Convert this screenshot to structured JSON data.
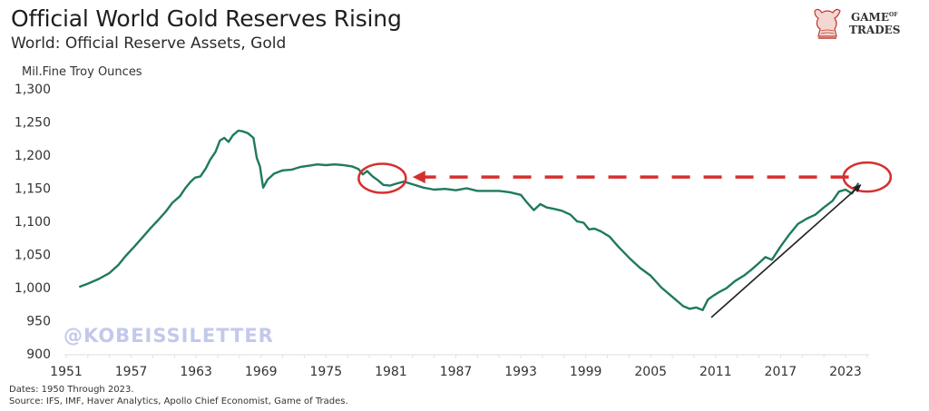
{
  "header": {
    "title": "Official World Gold Reserves Rising",
    "subtitle": "World: Official Reserve Assets, Gold",
    "unit_label": "Mil.Fine Troy Ounces"
  },
  "logo": {
    "line1": "GAME",
    "line1_small": "OF",
    "line2": "TRADES",
    "brand_color": "#c0392b"
  },
  "watermark": "@KOBEISSILETTER",
  "footnotes": {
    "dates": "Dates: 1950 Through 2023.",
    "source": "Source: IFS, IMF, Haver Analytics, Apollo Chief Economist, Game of Trades."
  },
  "colors": {
    "line": "#1f7a5c",
    "annotation": "#d62f2f",
    "arrow": "#222222",
    "axis": "#e3e3e3"
  },
  "chart_data": {
    "type": "line",
    "title": "Official World Gold Reserves Rising",
    "subtitle": "World: Official Reserve Assets, Gold",
    "xlabel": "",
    "ylabel": "Mil.Fine Troy Ounces",
    "xlim": [
      1950,
      2026
    ],
    "ylim": [
      900,
      1300
    ],
    "grid": false,
    "x_ticks": [
      1951,
      1957,
      1963,
      1969,
      1975,
      1981,
      1987,
      1993,
      1999,
      2005,
      2011,
      2017,
      2023
    ],
    "x_tick_labels": [
      "1951",
      "1957",
      "1963",
      "1969",
      "1975",
      "1981",
      "1987",
      "1993",
      "1999",
      "2005",
      "2011",
      "2017",
      "2023"
    ],
    "y_ticks": [
      900,
      950,
      1000,
      1050,
      1100,
      1150,
      1200,
      1250,
      1300
    ],
    "y_tick_labels": [
      "900",
      "950",
      "1,000",
      "1,050",
      "1,100",
      "1,150",
      "1,200",
      "1,250",
      "1,300"
    ],
    "series": [
      {
        "name": "World: Official Reserve Assets, Gold",
        "x": [
          1952.2,
          1953.0,
          1954.0,
          1955.0,
          1955.8,
          1956.5,
          1957.3,
          1958.0,
          1958.8,
          1959.5,
          1960.2,
          1960.8,
          1961.5,
          1962.0,
          1962.5,
          1962.9,
          1963.4,
          1963.9,
          1964.3,
          1964.8,
          1965.2,
          1965.6,
          1966.0,
          1966.4,
          1966.9,
          1967.3,
          1967.8,
          1968.3,
          1968.6,
          1968.9,
          1969.2,
          1969.6,
          1970.2,
          1971.0,
          1971.8,
          1972.6,
          1973.4,
          1974.2,
          1975.0,
          1975.8,
          1976.6,
          1977.4,
          1978.0,
          1978.4,
          1978.8,
          1979.3,
          1979.8,
          1980.3,
          1980.9,
          1981.5,
          1982.2,
          1983.0,
          1984.0,
          1985.0,
          1986.0,
          1987.0,
          1988.0,
          1989.0,
          1990.0,
          1991.0,
          1992.0,
          1993.0,
          1993.6,
          1994.2,
          1994.8,
          1995.4,
          1996.0,
          1996.8,
          1997.6,
          1998.2,
          1998.8,
          1999.3,
          1999.8,
          2000.4,
          2001.2,
          2002.0,
          2003.0,
          2004.0,
          2005.0,
          2006.0,
          2007.0,
          2008.0,
          2008.6,
          2009.2,
          2009.8,
          2010.3,
          2010.8,
          2011.3,
          2012.0,
          2012.8,
          2013.6,
          2014.3,
          2015.0,
          2015.6,
          2016.2,
          2017.0,
          2017.8,
          2018.6,
          2019.4,
          2020.2,
          2021.0,
          2021.8,
          2022.4,
          2023.0,
          2023.6,
          2024.2
        ],
        "values": [
          1001,
          1006,
          1013,
          1022,
          1034,
          1048,
          1062,
          1075,
          1090,
          1102,
          1115,
          1128,
          1138,
          1150,
          1160,
          1166,
          1168,
          1180,
          1193,
          1205,
          1222,
          1226,
          1220,
          1230,
          1237,
          1236,
          1233,
          1226,
          1196,
          1183,
          1151,
          1163,
          1172,
          1177,
          1178,
          1182,
          1184,
          1186,
          1185,
          1186,
          1185,
          1183,
          1179,
          1171,
          1176,
          1168,
          1162,
          1155,
          1154,
          1157,
          1160,
          1156,
          1151,
          1148,
          1149,
          1147,
          1150,
          1146,
          1146,
          1146,
          1144,
          1140,
          1128,
          1117,
          1126,
          1121,
          1119,
          1116,
          1110,
          1100,
          1098,
          1088,
          1089,
          1085,
          1077,
          1062,
          1045,
          1030,
          1018,
          1000,
          986,
          972,
          968,
          970,
          966,
          982,
          988,
          993,
          999,
          1010,
          1018,
          1027,
          1037,
          1046,
          1042,
          1062,
          1080,
          1096,
          1104,
          1110,
          1121,
          1131,
          1145,
          1148,
          1142,
          1158
        ]
      }
    ],
    "annotations": [
      {
        "type": "circle",
        "label": "",
        "x": 1980.2,
        "y": 1165
      },
      {
        "type": "circle",
        "label": "",
        "x": 2025.0,
        "y": 1167
      },
      {
        "type": "dashed-arrow",
        "label": "",
        "from_x": 2023.3,
        "to_x": 1983.0,
        "y": 1167
      },
      {
        "type": "arrow",
        "label": "",
        "from_x": 2010.6,
        "from_y": 955,
        "to_x": 2024.4,
        "to_y": 1155
      }
    ],
    "watermark": "@KOBEISSILETTER",
    "notes": [
      "Dates: 1950 Through 2023.",
      "Source: IFS, IMF, Haver Analytics, Apollo Chief Economist, Game of Trades."
    ]
  }
}
